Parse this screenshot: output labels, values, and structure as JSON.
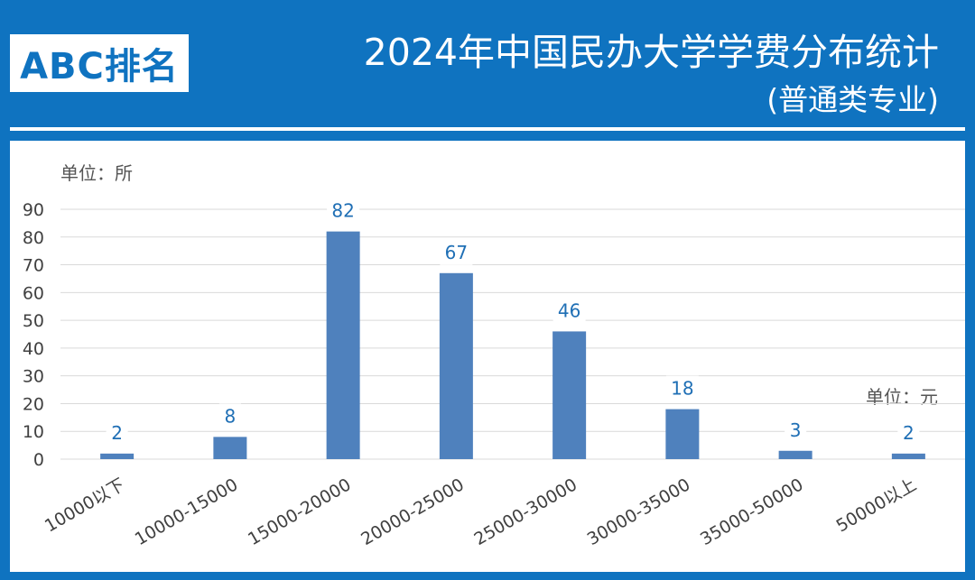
{
  "header": {
    "logo_text": "ABC排名",
    "title": "2024年中国民办大学学费分布统计",
    "subtitle": "(普通类专业)"
  },
  "chart_data": {
    "type": "bar",
    "categories": [
      "10000以下",
      "10000-15000",
      "15000-20000",
      "20000-25000",
      "25000-30000",
      "30000-35000",
      "35000-50000",
      "50000以上"
    ],
    "values": [
      2,
      8,
      82,
      67,
      46,
      18,
      3,
      2
    ],
    "y_unit_label": "单位：所",
    "x_unit_label": "单位：元",
    "ylim": [
      0,
      90
    ],
    "yticks": [
      0,
      10,
      20,
      30,
      40,
      50,
      60,
      70,
      80,
      90
    ],
    "grid": true,
    "data_labels": true,
    "colors": {
      "bar": "#4f81bd",
      "data_label": "#1f6fb5",
      "frame": "#0f73c0",
      "grid": "#d9d9d9",
      "tick_label": "#404040"
    }
  }
}
